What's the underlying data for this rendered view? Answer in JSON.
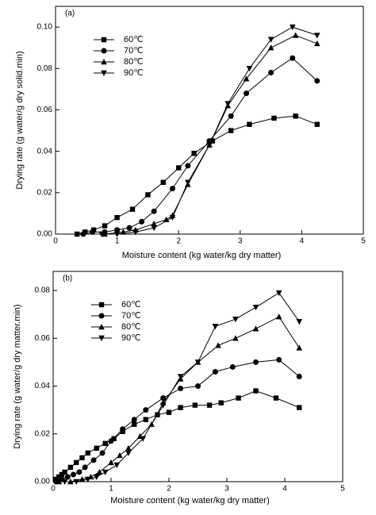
{
  "chart_data": [
    {
      "type": "line",
      "panel_label": "(a)",
      "x_label": "Moisture content (kg water/kg dry matter)",
      "y_label": "Drying rate (g water/g dry solid.min)",
      "xlim": [
        0,
        5
      ],
      "xticks": [
        0,
        1,
        2,
        3,
        4,
        5
      ],
      "ylim": [
        0,
        0.11
      ],
      "yticks": [
        {
          "value": 0,
          "label": "0.00"
        },
        {
          "value": 0.02,
          "label": "0.02"
        },
        {
          "value": 0.04,
          "label": "0.04"
        },
        {
          "value": 0.06,
          "label": "0.06"
        },
        {
          "value": 0.08,
          "label": "0.08"
        },
        {
          "value": 0.1,
          "label": "0.10"
        }
      ],
      "legend": "upper left",
      "series": [
        {
          "name": "60℃",
          "color": "#000000",
          "marker": "square",
          "x": [
            0.35,
            0.48,
            0.62,
            0.8,
            1.0,
            1.25,
            1.5,
            1.75,
            2.0,
            2.25,
            2.55,
            2.85,
            3.15,
            3.55,
            3.9,
            4.25
          ],
          "values": [
            0.0,
            0.001,
            0.002,
            0.004,
            0.008,
            0.012,
            0.019,
            0.025,
            0.032,
            0.039,
            0.045,
            0.05,
            0.053,
            0.056,
            0.057,
            0.053
          ]
        },
        {
          "name": "70℃",
          "color": "#000000",
          "marker": "circle",
          "x": [
            0.45,
            0.6,
            0.8,
            1.0,
            1.2,
            1.4,
            1.6,
            1.9,
            2.15,
            2.5,
            2.85,
            3.1,
            3.5,
            3.85,
            4.25
          ],
          "values": [
            0.0,
            0.001,
            0.001,
            0.002,
            0.003,
            0.006,
            0.011,
            0.022,
            0.033,
            0.045,
            0.057,
            0.068,
            0.078,
            0.085,
            0.074
          ]
        },
        {
          "name": "80℃",
          "color": "#000000",
          "marker": "triangle",
          "x": [
            0.8,
            1.1,
            1.3,
            1.6,
            1.8,
            1.9,
            2.15,
            2.5,
            2.8,
            3.1,
            3.5,
            3.9,
            4.25
          ],
          "values": [
            0.0,
            0.001,
            0.002,
            0.005,
            0.007,
            0.009,
            0.024,
            0.043,
            0.062,
            0.075,
            0.09,
            0.096,
            0.092
          ]
        },
        {
          "name": "90℃",
          "color": "#000000",
          "marker": "triangle-down",
          "x": [
            0.75,
            1.0,
            1.3,
            1.6,
            1.9,
            2.15,
            2.5,
            2.8,
            3.15,
            3.5,
            3.85,
            4.25
          ],
          "values": [
            0.0,
            0.0,
            0.001,
            0.003,
            0.008,
            0.025,
            0.043,
            0.063,
            0.08,
            0.094,
            0.1,
            0.096
          ]
        }
      ]
    },
    {
      "type": "line",
      "panel_label": "(b)",
      "x_label": "Moisture content (kg water/kg dry matter)",
      "y_label": "Drying rate (g water/g dry matter.min)",
      "xlim": [
        0,
        5
      ],
      "xticks": [
        0,
        1,
        2,
        3,
        4,
        5
      ],
      "ylim": [
        0,
        0.088
      ],
      "yticks": [
        {
          "value": 0,
          "label": "0.00"
        },
        {
          "value": 0.02,
          "label": "0.02"
        },
        {
          "value": 0.04,
          "label": "0.04"
        },
        {
          "value": 0.06,
          "label": "0.06"
        },
        {
          "value": 0.08,
          "label": "0.08"
        }
      ],
      "legend": "upper left",
      "series": [
        {
          "name": "60℃",
          "color": "#000000",
          "marker": "square",
          "x": [
            0.05,
            0.1,
            0.15,
            0.2,
            0.3,
            0.4,
            0.5,
            0.6,
            0.75,
            0.9,
            1.05,
            1.2,
            1.4,
            1.6,
            1.8,
            2.0,
            2.2,
            2.45,
            2.7,
            2.9,
            3.2,
            3.5,
            3.85,
            4.25
          ],
          "values": [
            0.001,
            0.002,
            0.003,
            0.004,
            0.006,
            0.008,
            0.01,
            0.012,
            0.014,
            0.016,
            0.018,
            0.021,
            0.024,
            0.026,
            0.028,
            0.029,
            0.031,
            0.032,
            0.032,
            0.033,
            0.035,
            0.038,
            0.035,
            0.031
          ]
        },
        {
          "name": "70℃",
          "color": "#000000",
          "marker": "circle",
          "x": [
            0.05,
            0.15,
            0.25,
            0.35,
            0.45,
            0.55,
            0.7,
            0.85,
            1.0,
            1.2,
            1.4,
            1.6,
            1.9,
            2.2,
            2.5,
            2.8,
            3.1,
            3.5,
            3.9,
            4.25
          ],
          "values": [
            0.0,
            0.001,
            0.002,
            0.003,
            0.004,
            0.006,
            0.009,
            0.012,
            0.017,
            0.022,
            0.026,
            0.03,
            0.035,
            0.039,
            0.04,
            0.046,
            0.048,
            0.05,
            0.051,
            0.044
          ]
        },
        {
          "name": "80℃",
          "color": "#000000",
          "marker": "triangle",
          "x": [
            0.1,
            0.3,
            0.5,
            0.65,
            0.8,
            1.0,
            1.15,
            1.3,
            1.5,
            1.7,
            1.9,
            2.2,
            2.5,
            2.85,
            3.15,
            3.5,
            3.9,
            4.25
          ],
          "values": [
            0.0,
            0.0,
            0.001,
            0.002,
            0.004,
            0.008,
            0.011,
            0.014,
            0.019,
            0.024,
            0.033,
            0.043,
            0.05,
            0.057,
            0.06,
            0.064,
            0.069,
            0.056
          ]
        },
        {
          "name": "90℃",
          "color": "#000000",
          "marker": "triangle-down",
          "x": [
            0.2,
            0.4,
            0.6,
            0.75,
            0.9,
            1.1,
            1.3,
            1.55,
            1.9,
            2.2,
            2.5,
            2.8,
            3.15,
            3.5,
            3.9,
            4.25
          ],
          "values": [
            0.0,
            0.0,
            0.001,
            0.002,
            0.004,
            0.007,
            0.012,
            0.018,
            0.032,
            0.044,
            0.05,
            0.065,
            0.068,
            0.073,
            0.079,
            0.067
          ]
        }
      ]
    }
  ]
}
